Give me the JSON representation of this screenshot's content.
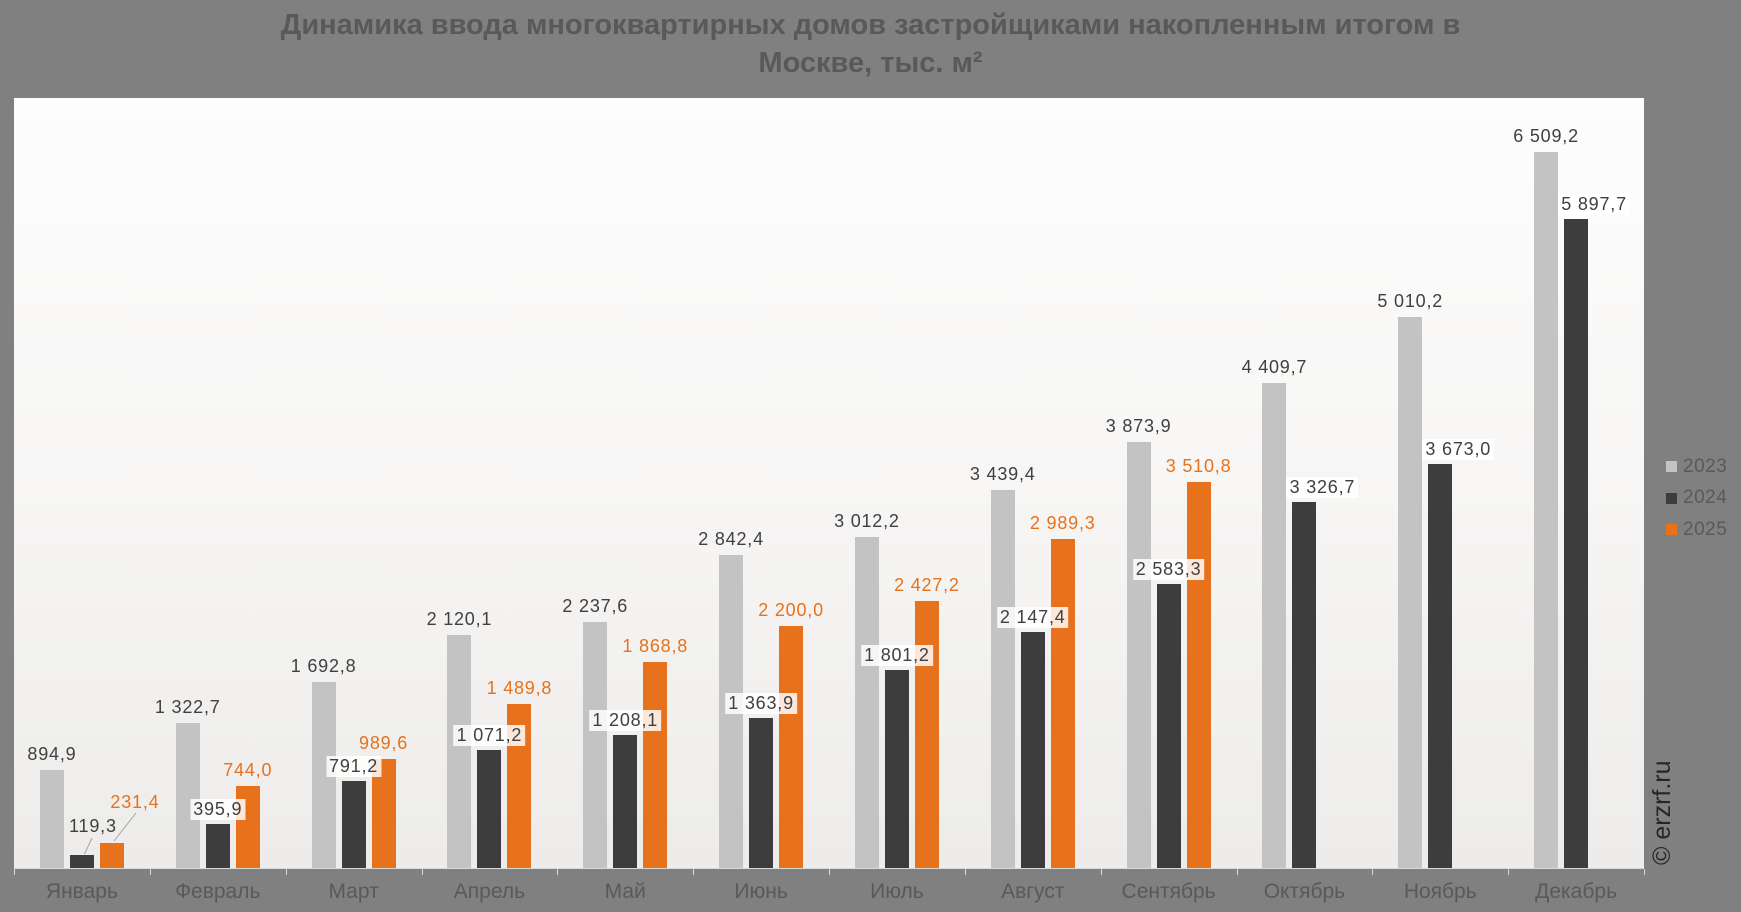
{
  "chart_data": {
    "type": "bar",
    "title": "Динамика ввода многоквартирных домов застройщиками накопленным итогом в Москве, тыс. м²",
    "title_lines": [
      "Динамика ввода многоквартирных домов застройщиками накопленным итогом в",
      "Москве, тыс. м²"
    ],
    "categories": [
      "Январь",
      "Февраль",
      "Март",
      "Апрель",
      "Май",
      "Июнь",
      "Июль",
      "Август",
      "Сентябрь",
      "Октябрь",
      "Ноябрь",
      "Декабрь"
    ],
    "series": [
      {
        "name": "2023",
        "color": "#c3c3c3",
        "values": [
          894.9,
          1322.7,
          1692.8,
          2120.1,
          2237.6,
          2842.4,
          3012.2,
          3439.4,
          3873.9,
          4409.7,
          5010.2,
          6509.2
        ],
        "labels": [
          "894,9",
          "1 322,7",
          "1 692,8",
          "2 120,1",
          "2 237,6",
          "2 842,4",
          "3 012,2",
          "3 439,4",
          "3 873,9",
          "4 409,7",
          "5 010,2",
          "6 509,2"
        ]
      },
      {
        "name": "2024",
        "color": "#3d3d3d",
        "values": [
          119.3,
          395.9,
          791.2,
          1071.2,
          1208.1,
          1363.9,
          1801.2,
          2147.4,
          2583.3,
          3326.7,
          3673.0,
          5897.7
        ],
        "labels": [
          "119,3",
          "395,9",
          "791,2",
          "1 071,2",
          "1 208,1",
          "1 363,9",
          "1 801,2",
          "2 147,4",
          "2 583,3",
          "3 326,7",
          "3 673,0",
          "5 897,7"
        ]
      },
      {
        "name": "2025",
        "color": "#e8711c",
        "values": [
          231.4,
          744.0,
          989.6,
          1489.8,
          1868.8,
          2200.0,
          2427.2,
          2989.3,
          3510.8,
          null,
          null,
          null
        ],
        "labels": [
          "231,4",
          "744,0",
          "989,6",
          "1 489,8",
          "1 868,8",
          "2 200,0",
          "2 427,2",
          "2 989,3",
          "3 510,8",
          null,
          null,
          null
        ]
      }
    ],
    "ylim": [
      0,
      7000
    ],
    "grid": false,
    "legend_position": "right",
    "label_colors": {
      "2023": "#404040",
      "2024": "#404040",
      "2025": "#e8711c"
    },
    "label_background_2024": "white",
    "leader_lines_on": "Январь",
    "watermark": "© erzrf.ru"
  }
}
